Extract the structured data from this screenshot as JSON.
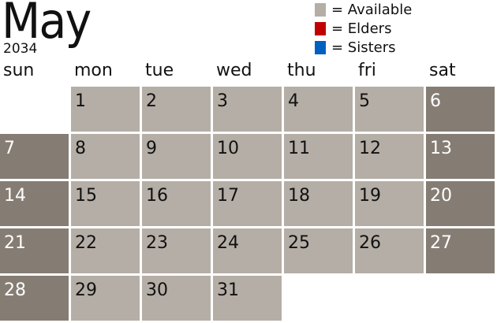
{
  "header": {
    "month": "May",
    "year": "2034"
  },
  "legend": [
    {
      "label": "= Available",
      "color": "#b5aea6"
    },
    {
      "label": "= Elders",
      "color": "#c00000"
    },
    {
      "label": "= Sisters",
      "color": "#0060c0"
    }
  ],
  "weekdays": [
    "sun",
    "mon",
    "tue",
    "wed",
    "thu",
    "fri",
    "sat"
  ],
  "colors": {
    "available": "#b5aea6",
    "weekend": "#857d74"
  },
  "first_weekday_index": 1,
  "days": [
    "1",
    "2",
    "3",
    "4",
    "5",
    "6",
    "7",
    "8",
    "9",
    "10",
    "11",
    "12",
    "13",
    "14",
    "15",
    "16",
    "17",
    "18",
    "19",
    "20",
    "21",
    "22",
    "23",
    "24",
    "25",
    "26",
    "27",
    "28",
    "29",
    "30",
    "31"
  ]
}
